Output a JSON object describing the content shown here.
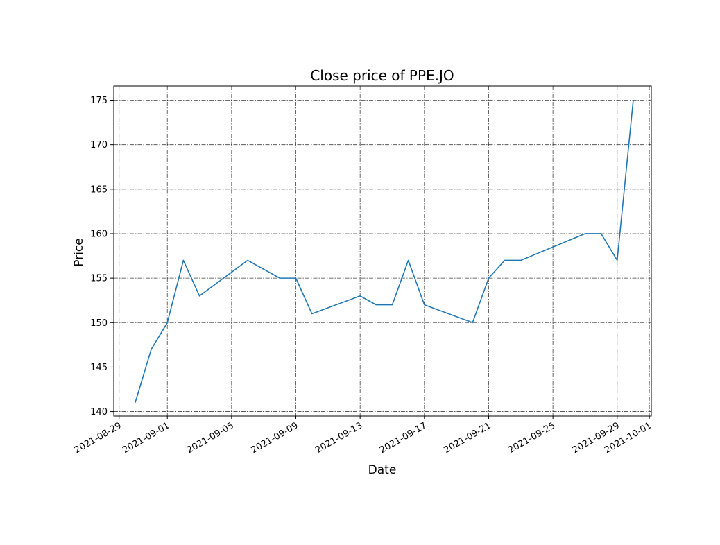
{
  "chart_data": {
    "type": "line",
    "title": "Close price of PPE.JO",
    "xlabel": "Date",
    "ylabel": "Price",
    "grid": true,
    "xlim": [
      "2021-08-28T16:00",
      "2021-10-01T03:00"
    ],
    "ylim": [
      139.5,
      176.6
    ],
    "x_ticks": [
      "2021-08-29",
      "2021-09-01",
      "2021-09-05",
      "2021-09-09",
      "2021-09-13",
      "2021-09-17",
      "2021-09-21",
      "2021-09-25",
      "2021-09-29",
      "2021-10-01"
    ],
    "y_ticks": [
      140,
      145,
      150,
      155,
      160,
      165,
      170,
      175
    ],
    "series": [
      {
        "name": "Close",
        "color": "#1f77b4",
        "x": [
          "2021-08-30",
          "2021-08-31",
          "2021-09-01",
          "2021-09-02",
          "2021-09-03",
          "2021-09-06",
          "2021-09-08",
          "2021-09-09",
          "2021-09-10",
          "2021-09-13",
          "2021-09-14",
          "2021-09-15",
          "2021-09-16",
          "2021-09-17",
          "2021-09-20",
          "2021-09-21",
          "2021-09-22",
          "2021-09-23",
          "2021-09-27",
          "2021-09-28",
          "2021-09-29",
          "2021-09-30"
        ],
        "values": [
          141,
          147,
          150,
          157,
          153,
          157,
          155,
          155,
          151,
          153,
          152,
          152,
          157,
          152,
          150,
          155,
          157,
          157,
          160,
          160,
          157,
          175
        ]
      }
    ]
  }
}
